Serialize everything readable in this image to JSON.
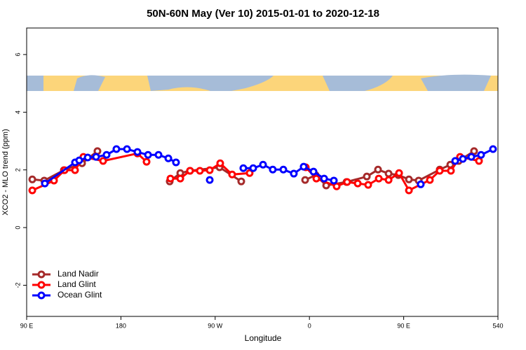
{
  "chart_data": {
    "type": "line",
    "title": "50N-60N May (Ver 10)   2015-01-01 to 2020-12-18",
    "x_label": "Longitude",
    "y_label": "XCO2 - MLO trend (ppm)",
    "xlim": [
      90,
      540
    ],
    "ylim": [
      -3.08,
      6.92
    ],
    "xticks": [
      {
        "value": 90,
        "label": "90 E"
      },
      180,
      {
        "value": 270,
        "label": "90 W"
      },
      {
        "value": 360,
        "label": "0"
      },
      {
        "value": 450,
        "label": "90 E"
      },
      540
    ],
    "yticks": [
      -2,
      0,
      2,
      4,
      6
    ],
    "grid": false,
    "legend": "bottom-left",
    "series": [
      {
        "name": "Land Nadir",
        "color": "#a52a2a",
        "x": [
          95.4,
          106.8,
          125.5,
          142.9,
          157.6,
          null,
          226.6,
          236.7,
          246.0,
          274.2,
          294.9,
          null,
          355.9,
          365.9,
          376.0,
          395.4,
          414.8,
          425.5,
          435.6,
          444.9,
          455.0,
          464.3,
          484.4,
          494.5,
          502.5,
          517.2
        ],
        "values": [
          1.67,
          1.63,
          1.99,
          2.23,
          2.65,
          null,
          1.6,
          1.89,
          1.97,
          2.09,
          1.6,
          null,
          1.65,
          1.82,
          1.46,
          1.58,
          1.77,
          2.01,
          1.87,
          1.82,
          1.67,
          1.63,
          2.01,
          2.18,
          2.31,
          2.65
        ]
      },
      {
        "name": "Land Glint",
        "color": "#ff0000",
        "x": [
          95.4,
          116.1,
          126.2,
          136.2,
          144.2,
          163.0,
          195.8,
          204.5,
          null,
          227.3,
          236.7,
          246.0,
          255.4,
          264.8,
          274.8,
          286.2,
          302.9,
          null,
          356.5,
          366.6,
          386.0,
          396.0,
          406.1,
          416.1,
          426.2,
          435.6,
          445.6,
          455.0,
          475.0,
          484.4,
          495.1,
          503.8,
          521.9
        ],
        "values": [
          1.29,
          1.63,
          1.99,
          1.99,
          2.45,
          2.31,
          2.57,
          2.28,
          null,
          1.7,
          1.7,
          1.97,
          1.97,
          1.99,
          2.23,
          1.84,
          1.89,
          null,
          2.09,
          1.7,
          1.43,
          1.58,
          1.53,
          1.48,
          1.7,
          1.65,
          1.89,
          1.29,
          1.65,
          1.97,
          1.97,
          2.45,
          2.31
        ]
      },
      {
        "name": "Ocean Glint",
        "color": "#0000ff",
        "x": [
          107.4,
          136.2,
          140.2,
          148.3,
          156.3,
          166.3,
          175.7,
          185.8,
          195.8,
          205.9,
          215.9,
          225.3,
          232.6,
          null,
          264.8,
          null,
          296.9,
          306.3,
          315.7,
          325.0,
          335.1,
          345.1,
          354.5,
          363.9,
          374.0,
          383.3,
          null,
          466.3,
          null,
          499.2,
          506.5,
          514.6,
          523.9,
          535.3
        ],
        "values": [
          1.53,
          2.26,
          2.33,
          2.43,
          2.45,
          2.52,
          2.72,
          2.72,
          2.62,
          2.52,
          2.52,
          2.4,
          2.26,
          null,
          1.65,
          null,
          2.06,
          2.06,
          2.18,
          2.01,
          2.01,
          1.87,
          2.11,
          1.94,
          1.7,
          1.63,
          null,
          1.5,
          null,
          2.31,
          2.38,
          2.45,
          2.52,
          2.72
        ]
      }
    ]
  }
}
